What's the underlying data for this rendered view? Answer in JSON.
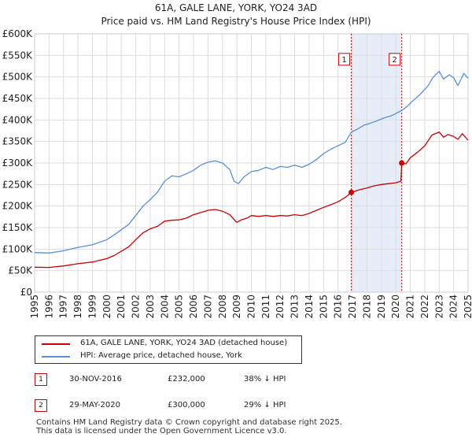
{
  "chart_data": {
    "type": "line",
    "title": "61A, GALE LANE, YORK, YO24 3AD",
    "subtitle": "Price paid vs. HM Land Registry's House Price Index (HPI)",
    "xlim": [
      1995,
      2025
    ],
    "ylim": [
      0,
      600000
    ],
    "y_ticks": [
      {
        "value": 0,
        "label": "£0"
      },
      {
        "value": 50000,
        "label": "£50K"
      },
      {
        "value": 100000,
        "label": "£100K"
      },
      {
        "value": 150000,
        "label": "£150K"
      },
      {
        "value": 200000,
        "label": "£200K"
      },
      {
        "value": 250000,
        "label": "£250K"
      },
      {
        "value": 300000,
        "label": "£300K"
      },
      {
        "value": 350000,
        "label": "£350K"
      },
      {
        "value": 400000,
        "label": "£400K"
      },
      {
        "value": 450000,
        "label": "£450K"
      },
      {
        "value": 500000,
        "label": "£500K"
      },
      {
        "value": 550000,
        "label": "£550K"
      },
      {
        "value": 600000,
        "label": "£600K"
      }
    ],
    "x_ticks": [
      "1995",
      "1996",
      "1997",
      "1998",
      "1999",
      "2000",
      "2001",
      "2002",
      "2003",
      "2004",
      "2005",
      "2006",
      "2007",
      "2008",
      "2009",
      "2010",
      "2011",
      "2012",
      "2013",
      "2014",
      "2015",
      "2016",
      "2017",
      "2018",
      "2019",
      "2020",
      "2021",
      "2022",
      "2023",
      "2024",
      "2025"
    ],
    "grid": true,
    "shaded_region": [
      2016.92,
      2020.41
    ],
    "series": [
      {
        "name": "61A, GALE LANE, YORK, YO24 3AD (detached house)",
        "color": "#cc0000",
        "points": [
          [
            1995.0,
            58000
          ],
          [
            1996.0,
            57500
          ],
          [
            1997.0,
            61000
          ],
          [
            1998.0,
            66000
          ],
          [
            1999.0,
            70000
          ],
          [
            2000.0,
            78000
          ],
          [
            2000.5,
            85000
          ],
          [
            2001.0,
            95000
          ],
          [
            2001.5,
            105000
          ],
          [
            2002.0,
            122000
          ],
          [
            2002.5,
            138000
          ],
          [
            2003.0,
            147000
          ],
          [
            2003.5,
            153000
          ],
          [
            2004.0,
            165000
          ],
          [
            2004.5,
            167000
          ],
          [
            2005.0,
            168000
          ],
          [
            2005.5,
            172000
          ],
          [
            2006.0,
            180000
          ],
          [
            2006.5,
            185000
          ],
          [
            2007.0,
            190000
          ],
          [
            2007.5,
            192000
          ],
          [
            2008.0,
            188000
          ],
          [
            2008.5,
            180000
          ],
          [
            2009.0,
            162000
          ],
          [
            2009.3,
            168000
          ],
          [
            2009.7,
            172000
          ],
          [
            2010.0,
            178000
          ],
          [
            2010.5,
            176000
          ],
          [
            2011.0,
            178000
          ],
          [
            2011.5,
            176000
          ],
          [
            2012.0,
            178000
          ],
          [
            2012.5,
            177000
          ],
          [
            2013.0,
            180000
          ],
          [
            2013.5,
            178000
          ],
          [
            2014.0,
            183000
          ],
          [
            2014.5,
            190000
          ],
          [
            2015.0,
            197000
          ],
          [
            2015.5,
            203000
          ],
          [
            2016.0,
            210000
          ],
          [
            2016.5,
            220000
          ],
          [
            2016.92,
            232000
          ],
          [
            2017.5,
            238000
          ],
          [
            2018.0,
            242000
          ],
          [
            2018.5,
            247000
          ],
          [
            2019.0,
            250000
          ],
          [
            2019.5,
            252000
          ],
          [
            2020.0,
            254000
          ],
          [
            2020.35,
            258000
          ],
          [
            2020.41,
            300000
          ],
          [
            2020.7,
            298000
          ],
          [
            2021.0,
            312000
          ],
          [
            2021.5,
            325000
          ],
          [
            2022.0,
            340000
          ],
          [
            2022.5,
            365000
          ],
          [
            2023.0,
            372000
          ],
          [
            2023.3,
            360000
          ],
          [
            2023.6,
            366000
          ],
          [
            2024.0,
            362000
          ],
          [
            2024.3,
            355000
          ],
          [
            2024.6,
            368000
          ],
          [
            2025.0,
            353000
          ]
        ]
      },
      {
        "name": "HPI: Average price, detached house, York",
        "color": "#5b8fd4",
        "points": [
          [
            1995.0,
            92000
          ],
          [
            1996.0,
            91000
          ],
          [
            1997.0,
            96000
          ],
          [
            1998.0,
            104000
          ],
          [
            1999.0,
            110000
          ],
          [
            2000.0,
            122000
          ],
          [
            2000.5,
            133000
          ],
          [
            2001.0,
            145000
          ],
          [
            2001.5,
            157000
          ],
          [
            2002.0,
            178000
          ],
          [
            2002.5,
            200000
          ],
          [
            2003.0,
            215000
          ],
          [
            2003.5,
            232000
          ],
          [
            2004.0,
            258000
          ],
          [
            2004.5,
            270000
          ],
          [
            2005.0,
            268000
          ],
          [
            2005.5,
            275000
          ],
          [
            2006.0,
            283000
          ],
          [
            2006.5,
            295000
          ],
          [
            2007.0,
            302000
          ],
          [
            2007.5,
            305000
          ],
          [
            2008.0,
            300000
          ],
          [
            2008.5,
            285000
          ],
          [
            2008.8,
            258000
          ],
          [
            2009.1,
            252000
          ],
          [
            2009.5,
            268000
          ],
          [
            2010.0,
            280000
          ],
          [
            2010.5,
            283000
          ],
          [
            2011.0,
            290000
          ],
          [
            2011.5,
            285000
          ],
          [
            2012.0,
            292000
          ],
          [
            2012.5,
            290000
          ],
          [
            2013.0,
            295000
          ],
          [
            2013.5,
            290000
          ],
          [
            2014.0,
            297000
          ],
          [
            2014.5,
            308000
          ],
          [
            2015.0,
            322000
          ],
          [
            2015.5,
            332000
          ],
          [
            2016.0,
            340000
          ],
          [
            2016.5,
            348000
          ],
          [
            2016.92,
            372000
          ],
          [
            2017.3,
            378000
          ],
          [
            2017.8,
            388000
          ],
          [
            2018.2,
            392000
          ],
          [
            2018.7,
            398000
          ],
          [
            2019.2,
            405000
          ],
          [
            2019.7,
            410000
          ],
          [
            2020.41,
            422000
          ],
          [
            2020.8,
            432000
          ],
          [
            2021.2,
            445000
          ],
          [
            2021.7,
            460000
          ],
          [
            2022.2,
            478000
          ],
          [
            2022.6,
            500000
          ],
          [
            2023.0,
            513000
          ],
          [
            2023.3,
            495000
          ],
          [
            2023.7,
            505000
          ],
          [
            2024.0,
            498000
          ],
          [
            2024.3,
            480000
          ],
          [
            2024.7,
            508000
          ],
          [
            2025.0,
            497000
          ]
        ]
      }
    ],
    "annotations": [
      {
        "id": "1",
        "x": 2016.92,
        "y": 232000,
        "label_y": 540000
      },
      {
        "id": "2",
        "x": 2020.41,
        "y": 300000,
        "label_y": 540000
      }
    ]
  },
  "legend": {
    "items": [
      {
        "label": "61A, GALE LANE, YORK, YO24 3AD (detached house)",
        "color": "#cc0000"
      },
      {
        "label": "HPI: Average price, detached house, York",
        "color": "#5b8fd4"
      }
    ]
  },
  "transactions": [
    {
      "num": "1",
      "date": "30-NOV-2016",
      "price": "£232,000",
      "hpi": "38% ↓ HPI"
    },
    {
      "num": "2",
      "date": "29-MAY-2020",
      "price": "£300,000",
      "hpi": "29% ↓ HPI"
    }
  ],
  "footer": {
    "line1": "Contains HM Land Registry data © Crown copyright and database right 2025.",
    "line2": "This data is licensed under the Open Government Licence v3.0."
  }
}
